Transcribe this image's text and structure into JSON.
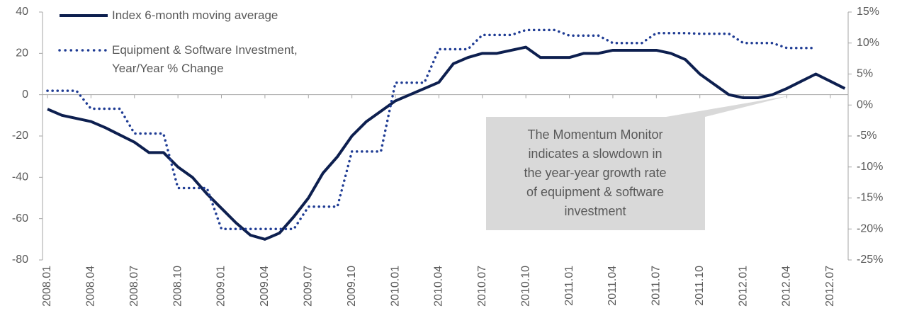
{
  "chart_data": {
    "type": "line",
    "categories": [
      "2008.01",
      null,
      null,
      "2008.04",
      null,
      null,
      "2008.07",
      null,
      null,
      "2008.10",
      null,
      null,
      "2009.01",
      null,
      null,
      "2009.04",
      null,
      null,
      "2009.07",
      null,
      null,
      "2009.10",
      null,
      null,
      "2010.01",
      null,
      null,
      "2010.04",
      null,
      null,
      "2010.07",
      null,
      null,
      "2010.10",
      null,
      null,
      "2011.01",
      null,
      null,
      "2011.04",
      null,
      null,
      "2011.07",
      null,
      null,
      "2011.10",
      null,
      null,
      "2012.01",
      null,
      null,
      "2012.04",
      null,
      null,
      "2012.07",
      null
    ],
    "series": [
      {
        "name": "Index 6-month moving average",
        "color": "#0d1f4f",
        "axis": "y",
        "values": [
          -7,
          -10,
          -11.5,
          -13,
          -16,
          -19.5,
          -23,
          -28,
          -28,
          -35,
          -40,
          -48,
          -55,
          -62,
          -68,
          -70,
          -67,
          -59,
          -50,
          -38,
          -30,
          -20,
          -13,
          -8,
          -3,
          0,
          3,
          6,
          15,
          18,
          20,
          20,
          21.5,
          23,
          18,
          18,
          18,
          20,
          20,
          21.5,
          21.5,
          21.5,
          21.5,
          20,
          17,
          10,
          5,
          0,
          -1.5,
          -1.5,
          0,
          3,
          6.5,
          10,
          6.5,
          3
        ]
      },
      {
        "name": "Equipment & Software Investment, Year/Year % Change",
        "color": "#1f3c94",
        "axis": "y2",
        "dash": true,
        "values": [
          2.3,
          2.3,
          2.3,
          -0.6,
          -0.6,
          -0.6,
          -4.6,
          -4.6,
          -4.6,
          -13.4,
          -13.4,
          -13.4,
          -20,
          -20,
          -20,
          -20,
          -20,
          -20,
          -16.4,
          -16.4,
          -16.4,
          -7.5,
          -7.5,
          -7.5,
          3.6,
          3.6,
          3.6,
          9,
          9,
          9,
          11.3,
          11.3,
          11.3,
          12.1,
          12.1,
          12.1,
          11.2,
          11.2,
          11.2,
          10,
          10,
          10,
          11.6,
          11.6,
          11.6,
          11.5,
          11.5,
          11.5,
          10,
          10,
          10,
          9.2,
          9.2,
          9.2,
          null,
          null
        ]
      }
    ],
    "ylim": [
      -80,
      40
    ],
    "yticks": [
      -80,
      -60,
      -40,
      -20,
      0,
      20,
      40
    ],
    "y2lim": [
      -25,
      15
    ],
    "y2ticks": [
      {
        "value": -25,
        "label": "-25%"
      },
      {
        "value": -20,
        "label": "-20%"
      },
      {
        "value": -15,
        "label": "-15%"
      },
      {
        "value": -10,
        "label": "-10%"
      },
      {
        "value": -5,
        "label": "-5%"
      },
      {
        "value": 0,
        "label": "0%"
      },
      {
        "value": 5,
        "label": "5%"
      },
      {
        "value": 10,
        "label": "10%"
      },
      {
        "value": 15,
        "label": "15%"
      }
    ],
    "annotation": [
      "The Momentum Monitor",
      "indicates a slowdown in",
      "the year-year growth rate",
      "of equipment & software",
      "investment"
    ]
  }
}
